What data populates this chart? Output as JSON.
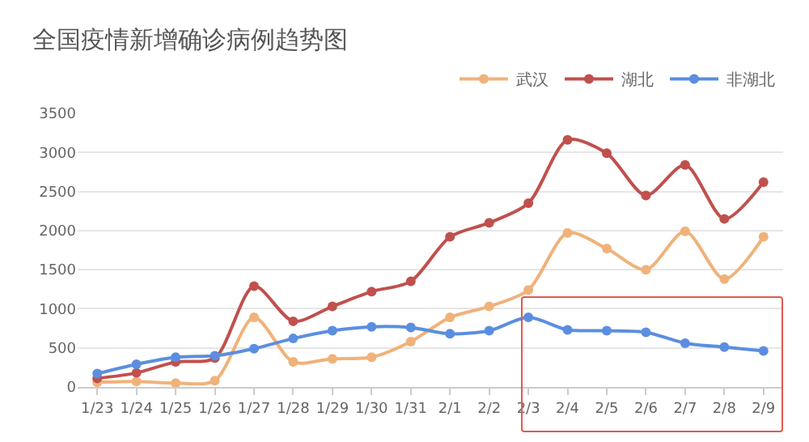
{
  "chart_data": {
    "type": "line",
    "title": "全国疫情新增确诊病例趋势图",
    "categories": [
      "1/23",
      "1/24",
      "1/25",
      "1/26",
      "1/27",
      "1/28",
      "1/29",
      "1/30",
      "1/31",
      "2/1",
      "2/2",
      "2/3",
      "2/4",
      "2/5",
      "2/6",
      "2/7",
      "2/8",
      "2/9"
    ],
    "series": [
      {
        "name": "武汉",
        "color": "#f0b27a",
        "values": [
          60,
          70,
          50,
          80,
          890,
          320,
          360,
          380,
          580,
          890,
          1030,
          1240,
          1970,
          1770,
          1500,
          1990,
          1380,
          1920
        ]
      },
      {
        "name": "湖北",
        "color": "#c0504d",
        "values": [
          110,
          180,
          320,
          370,
          1290,
          840,
          1030,
          1220,
          1350,
          1920,
          2100,
          2350,
          3160,
          2990,
          2450,
          2840,
          2150,
          2620
        ]
      },
      {
        "name": "非湖北",
        "color": "#5b8ee0",
        "values": [
          170,
          290,
          380,
          400,
          490,
          620,
          720,
          770,
          760,
          680,
          720,
          890,
          730,
          720,
          700,
          560,
          510,
          460
        ]
      }
    ],
    "ylim": [
      0,
      3500
    ],
    "yticks": [
      0,
      500,
      1000,
      1500,
      2000,
      2500,
      3000,
      3500
    ],
    "grid": "y",
    "legend": "top right",
    "marker": "circle",
    "line_style": "solid"
  }
}
